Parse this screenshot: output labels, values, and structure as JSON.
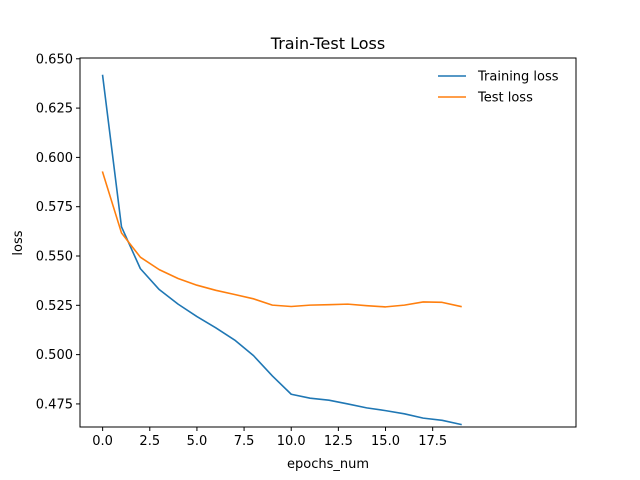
{
  "chart_data": {
    "type": "line",
    "title": "Train-Test Loss",
    "xlabel": "epochs_num",
    "ylabel": "loss",
    "x": [
      0,
      1,
      2,
      3,
      4,
      5,
      6,
      7,
      8,
      9,
      10,
      11,
      12,
      13,
      14,
      15,
      16,
      17,
      18,
      19
    ],
    "xlim": [
      -1.2,
      25.1
    ],
    "ylim": [
      0.4633,
      0.6504
    ],
    "xticks": [
      0.0,
      2.5,
      5.0,
      7.5,
      10.0,
      12.5,
      15.0,
      17.5
    ],
    "xtick_labels": [
      "0.0",
      "2.5",
      "5.0",
      "7.5",
      "10.0",
      "12.5",
      "15.0",
      "17.5"
    ],
    "yticks": [
      0.475,
      0.5,
      0.525,
      0.55,
      0.575,
      0.6,
      0.625,
      0.65
    ],
    "ytick_labels": [
      "0.475",
      "0.500",
      "0.525",
      "0.550",
      "0.575",
      "0.600",
      "0.625",
      "0.650"
    ],
    "grid": false,
    "legend_position": "top-right",
    "series": [
      {
        "name": "Training loss",
        "color": "#1f77b4",
        "values": [
          0.6415,
          0.5648,
          0.5436,
          0.533,
          0.5256,
          0.5193,
          0.5136,
          0.5074,
          0.4995,
          0.4892,
          0.4799,
          0.4779,
          0.4769,
          0.475,
          0.473,
          0.4716,
          0.47,
          0.4678,
          0.4667,
          0.4646
        ]
      },
      {
        "name": "Test loss",
        "color": "#ff7f0e",
        "values": [
          0.5925,
          0.5617,
          0.5494,
          0.5431,
          0.5386,
          0.5352,
          0.5326,
          0.5305,
          0.5283,
          0.5251,
          0.5244,
          0.5251,
          0.5253,
          0.5256,
          0.5248,
          0.5242,
          0.5251,
          0.5267,
          0.5265,
          0.5244
        ]
      }
    ]
  }
}
